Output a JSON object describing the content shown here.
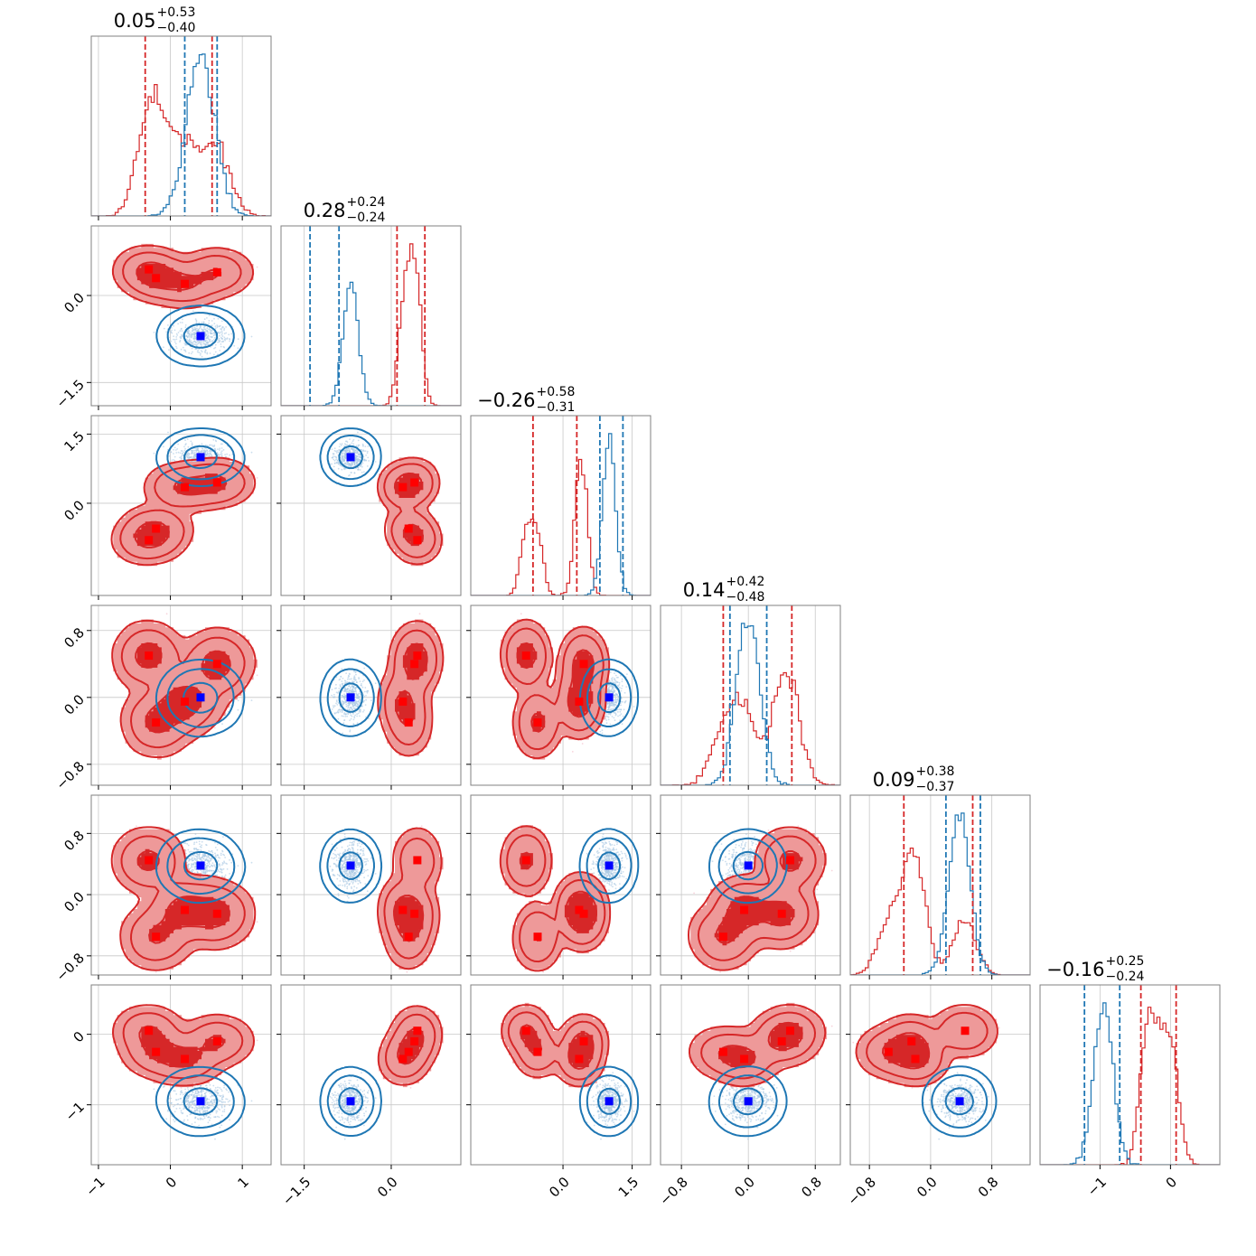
{
  "chart_data": {
    "type": "corner",
    "colors": {
      "red": "#d62728",
      "blue": "#1f77b4",
      "red_fill": "#ee9999",
      "grid": "#c8c8c8",
      "red_point": "#ff0000",
      "blue_point": "#0000ff"
    },
    "dims": [
      {
        "range": [
          -1.1,
          1.4
        ],
        "ticks": [
          {
            "v": -1,
            "t": "−1"
          },
          {
            "v": 0,
            "t": "0"
          },
          {
            "v": 1,
            "t": "1"
          }
        ],
        "title": {
          "main": "0.05",
          "plus": "+0.53",
          "minus": "−0.40"
        },
        "lines": {
          "red": [
            -0.35,
            0.58
          ],
          "blue": [
            0.2,
            0.65
          ]
        }
      },
      {
        "range": [
          -1.9,
          1.2
        ],
        "ticks": [
          {
            "v": -1.5,
            "t": "−1.5"
          },
          {
            "v": 0,
            "t": "0.0"
          }
        ],
        "title": {
          "main": "0.28",
          "plus": "+0.24",
          "minus": "−0.24"
        },
        "lines": {
          "red": [
            0.1,
            0.58
          ],
          "blue": [
            -1.4,
            -0.9
          ]
        }
      },
      {
        "range": [
          -2.0,
          1.9
        ],
        "ticks": [
          {
            "v": 0,
            "t": "0.0"
          },
          {
            "v": 1.5,
            "t": "1.5"
          }
        ],
        "title": {
          "main": "−0.26",
          "plus": "+0.58",
          "minus": "−0.31"
        },
        "lines": {
          "red": [
            -0.65,
            0.3
          ],
          "blue": [
            0.8,
            1.3
          ]
        }
      },
      {
        "range": [
          -1.05,
          1.1
        ],
        "ticks": [
          {
            "v": -0.8,
            "t": "−0.8"
          },
          {
            "v": 0,
            "t": "0.0"
          },
          {
            "v": 0.8,
            "t": "0.8"
          }
        ],
        "title": {
          "main": "0.14",
          "plus": "+0.42",
          "minus": "−0.48"
        },
        "lines": {
          "red": [
            -0.3,
            0.52
          ],
          "blue": [
            -0.22,
            0.22
          ]
        }
      },
      {
        "range": [
          -1.05,
          1.3
        ],
        "ticks": [
          {
            "v": -0.8,
            "t": "−0.8"
          },
          {
            "v": 0,
            "t": "0.0"
          },
          {
            "v": 0.8,
            "t": "0.8"
          }
        ],
        "title": {
          "main": "0.09",
          "plus": "+0.38",
          "minus": "−0.37"
        },
        "lines": {
          "red": [
            -0.35,
            0.55
          ],
          "blue": [
            0.2,
            0.65
          ]
        }
      },
      {
        "range": [
          -1.85,
          0.7
        ],
        "ticks": [
          {
            "v": -1,
            "t": "−1"
          },
          {
            "v": 0,
            "t": "0"
          }
        ],
        "title": {
          "main": "−0.16",
          "plus": "+0.25",
          "minus": "−0.24"
        },
        "lines": {
          "red": [
            -0.42,
            0.08
          ],
          "blue": [
            -1.22,
            -0.72
          ]
        }
      }
    ],
    "red_modes": [
      {
        "w": 0.25,
        "m": [
          -0.3,
          0.45,
          -0.8,
          0.5,
          0.45,
          0.05
        ],
        "s": [
          0.18,
          0.1,
          0.12,
          0.15,
          0.15,
          0.1
        ]
      },
      {
        "w": 0.22,
        "m": [
          -0.2,
          0.3,
          -0.55,
          -0.3,
          -0.55,
          -0.25
        ],
        "s": [
          0.18,
          0.1,
          0.12,
          0.15,
          0.15,
          0.1
        ]
      },
      {
        "w": 0.28,
        "m": [
          0.2,
          0.2,
          0.35,
          -0.05,
          -0.2,
          -0.35
        ],
        "s": [
          0.2,
          0.1,
          0.12,
          0.15,
          0.15,
          0.1
        ]
      },
      {
        "w": 0.25,
        "m": [
          0.65,
          0.4,
          0.45,
          0.4,
          -0.25,
          -0.1
        ],
        "s": [
          0.18,
          0.1,
          0.12,
          0.15,
          0.15,
          0.1
        ]
      }
    ],
    "blue_dist": {
      "m": [
        0.42,
        -0.7,
        1.0,
        0.0,
        0.38,
        -0.95
      ],
      "s": [
        0.2,
        0.13,
        0.14,
        0.14,
        0.14,
        0.14
      ]
    }
  }
}
